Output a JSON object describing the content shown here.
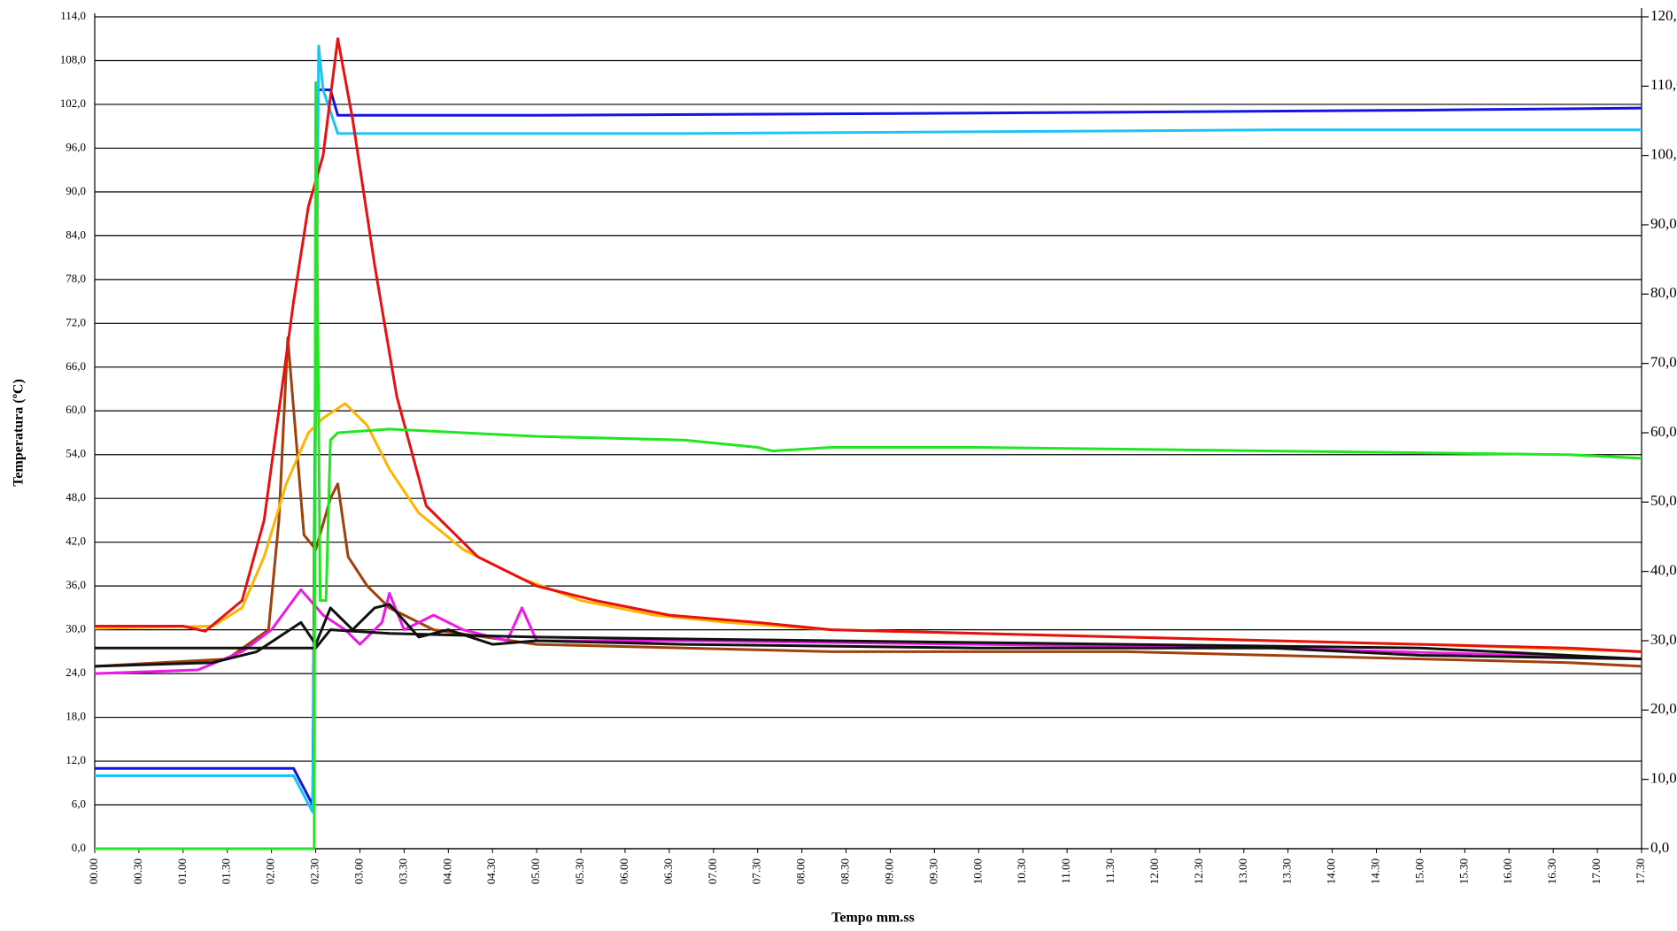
{
  "chart_data": {
    "type": "line",
    "xlabel": "Tempo mm.ss",
    "ylabel": "Temperatura (ºC)",
    "xlim": [
      0,
      1050
    ],
    "xticks": [
      {
        "value": 0,
        "label": "00.00"
      },
      {
        "value": 30,
        "label": "00.30"
      },
      {
        "value": 60,
        "label": "01.00"
      },
      {
        "value": 90,
        "label": "01.30"
      },
      {
        "value": 120,
        "label": "02.00"
      },
      {
        "value": 150,
        "label": "02.30"
      },
      {
        "value": 180,
        "label": "03.00"
      },
      {
        "value": 210,
        "label": "03.30"
      },
      {
        "value": 240,
        "label": "04.00"
      },
      {
        "value": 270,
        "label": "04.30"
      },
      {
        "value": 300,
        "label": "05.00"
      },
      {
        "value": 330,
        "label": "05.30"
      },
      {
        "value": 360,
        "label": "06.00"
      },
      {
        "value": 390,
        "label": "06.30"
      },
      {
        "value": 420,
        "label": "07.00"
      },
      {
        "value": 450,
        "label": "07.30"
      },
      {
        "value": 480,
        "label": "08.00"
      },
      {
        "value": 510,
        "label": "08.30"
      },
      {
        "value": 540,
        "label": "09.00"
      },
      {
        "value": 570,
        "label": "09.30"
      },
      {
        "value": 600,
        "label": "10.00"
      },
      {
        "value": 630,
        "label": "10.30"
      },
      {
        "value": 660,
        "label": "11.00"
      },
      {
        "value": 690,
        "label": "11.30"
      },
      {
        "value": 720,
        "label": "12.00"
      },
      {
        "value": 750,
        "label": "12.30"
      },
      {
        "value": 780,
        "label": "13.00"
      },
      {
        "value": 810,
        "label": "13.30"
      },
      {
        "value": 840,
        "label": "14.00"
      },
      {
        "value": 870,
        "label": "14.30"
      },
      {
        "value": 900,
        "label": "15.00"
      },
      {
        "value": 930,
        "label": "15.30"
      },
      {
        "value": 960,
        "label": "16.00"
      },
      {
        "value": 990,
        "label": "16.30"
      },
      {
        "value": 1020,
        "label": "17.00"
      },
      {
        "value": 1050,
        "label": "17.30"
      }
    ],
    "ylim": [
      0,
      114
    ],
    "yticks": [
      {
        "value": 0,
        "label": "0,0"
      },
      {
        "value": 6,
        "label": "6,0"
      },
      {
        "value": 12,
        "label": "12,0"
      },
      {
        "value": 18,
        "label": "18,0"
      },
      {
        "value": 24,
        "label": "24,0"
      },
      {
        "value": 30,
        "label": "30,0"
      },
      {
        "value": 36,
        "label": "36,0"
      },
      {
        "value": 42,
        "label": "42,0"
      },
      {
        "value": 48,
        "label": "48,0"
      },
      {
        "value": 54,
        "label": "54,0"
      },
      {
        "value": 60,
        "label": "60,0"
      },
      {
        "value": 66,
        "label": "66,0"
      },
      {
        "value": 72,
        "label": "72,0"
      },
      {
        "value": 78,
        "label": "78,0"
      },
      {
        "value": 84,
        "label": "84,0"
      },
      {
        "value": 90,
        "label": "90,0"
      },
      {
        "value": 96,
        "label": "96,0"
      },
      {
        "value": 102,
        "label": "102,0"
      },
      {
        "value": 108,
        "label": "108,0"
      },
      {
        "value": 114,
        "label": "114,0"
      }
    ],
    "y2lim": [
      0,
      120
    ],
    "y2ticks": [
      {
        "value": 0,
        "label": "0,0"
      },
      {
        "value": 10,
        "label": "10,0"
      },
      {
        "value": 20,
        "label": "20,0"
      },
      {
        "value": 30,
        "label": "30,0"
      },
      {
        "value": 40,
        "label": "40,0"
      },
      {
        "value": 50,
        "label": "50,0"
      },
      {
        "value": 60,
        "label": "60,0"
      },
      {
        "value": 70,
        "label": "70,0"
      },
      {
        "value": 80,
        "label": "80,0"
      },
      {
        "value": 90,
        "label": "90,0"
      },
      {
        "value": 100,
        "label": "100,0"
      },
      {
        "value": 110,
        "label": "110,0"
      },
      {
        "value": 120,
        "label": "120,0"
      }
    ],
    "grid": true,
    "series": [
      {
        "color": "#1414e6",
        "x": [
          0,
          135,
          148,
          151,
          160,
          165,
          300,
          600,
          900,
          1050
        ],
        "values": [
          11,
          11,
          6,
          104,
          104,
          100.5,
          100.5,
          100.8,
          101.2,
          101.5
        ]
      },
      {
        "color": "#1ec3f5",
        "x": [
          0,
          135,
          148,
          150,
          152,
          155,
          165,
          400,
          800,
          1050
        ],
        "values": [
          10,
          10,
          5,
          60,
          110,
          104,
          98,
          98,
          98.5,
          98.5
        ]
      },
      {
        "color": "#a0400a",
        "x": [
          0,
          90,
          118,
          125,
          131,
          142,
          150,
          160,
          165,
          172,
          185,
          200,
          230,
          300,
          400,
          500,
          700,
          800,
          900,
          1000,
          1050
        ],
        "values": [
          25,
          26,
          30,
          45,
          70,
          43,
          41,
          48,
          50,
          40,
          36,
          33,
          30,
          28,
          27.5,
          27,
          27,
          26.5,
          26,
          25.5,
          25
        ]
      },
      {
        "color": "#ffb400",
        "x": [
          0,
          80,
          100,
          115,
          130,
          145,
          155,
          170,
          185,
          200,
          220,
          250,
          290,
          330,
          380,
          430,
          500,
          700,
          900,
          1050
        ],
        "values": [
          30.2,
          30.5,
          33,
          40,
          50,
          57,
          59,
          61,
          58,
          52,
          46,
          41,
          37,
          34,
          32,
          31,
          30,
          29,
          28,
          27
        ]
      },
      {
        "color": "#e81010",
        "x": [
          0,
          60,
          75,
          100,
          115,
          125,
          135,
          145,
          155,
          165,
          175,
          190,
          205,
          225,
          260,
          300,
          340,
          390,
          450,
          500,
          600,
          700,
          800,
          900,
          1000,
          1050
        ],
        "values": [
          30.5,
          30.5,
          29.8,
          34,
          45,
          60,
          75,
          88,
          95,
          111,
          100,
          80,
          62,
          47,
          40,
          36,
          34,
          32,
          31,
          30,
          29.5,
          29,
          28.5,
          28,
          27.5,
          27
        ]
      },
      {
        "color": "#f018e8",
        "x": [
          0,
          70,
          100,
          120,
          140,
          155,
          170,
          180,
          195,
          200,
          210,
          230,
          250,
          270,
          280,
          290,
          300,
          400,
          600,
          800,
          1050
        ],
        "values": [
          24,
          24.5,
          27,
          30,
          35.5,
          32,
          30,
          28,
          31,
          35,
          30,
          32,
          30,
          29,
          28.5,
          33,
          28.5,
          28.5,
          28,
          27.5,
          26
        ]
      },
      {
        "color": "#111111",
        "x": [
          0,
          150,
          160,
          200,
          300,
          500,
          700,
          900,
          1050
        ],
        "values": [
          27.5,
          27.5,
          30,
          29.5,
          29,
          28.5,
          28,
          27.5,
          26
        ]
      },
      {
        "color": "#111111",
        "x": [
          0,
          80,
          110,
          140,
          150,
          160,
          175,
          190,
          200,
          220,
          240,
          270,
          300,
          400,
          600,
          800,
          900,
          1050
        ],
        "values": [
          25,
          25.5,
          27,
          31,
          28,
          33,
          30,
          33,
          33.5,
          29,
          30,
          28,
          28.5,
          28,
          27.5,
          27.5,
          26.5,
          26
        ]
      },
      {
        "color": "#22e622",
        "x": [
          0,
          149,
          150,
          153,
          157,
          160,
          165,
          200,
          250,
          300,
          400,
          450,
          460,
          500,
          600,
          800,
          1000,
          1050
        ],
        "values": [
          0,
          0,
          105,
          34,
          34,
          56,
          57,
          57.5,
          57,
          56.5,
          56,
          55,
          54.5,
          55,
          55,
          54.5,
          54,
          53.5
        ]
      }
    ]
  }
}
